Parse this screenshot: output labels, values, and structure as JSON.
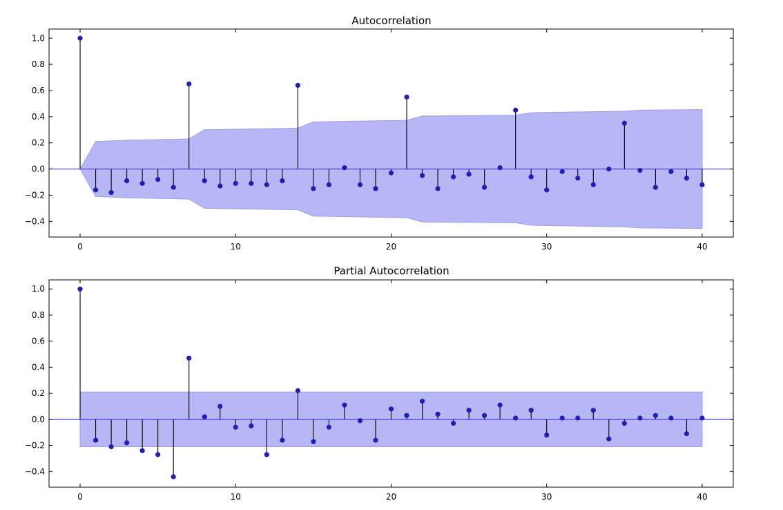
{
  "chart_data": [
    {
      "type": "stem",
      "title": "Autocorrelation",
      "xlabel": "",
      "ylabel": "",
      "xlim": [
        -2,
        42
      ],
      "ylim": [
        -0.52,
        1.07
      ],
      "xticks": [
        0,
        10,
        20,
        30,
        40
      ],
      "xtick_labels": [
        "0",
        "10",
        "20",
        "30",
        "40"
      ],
      "yticks": [
        -0.4,
        -0.2,
        0.0,
        0.2,
        0.4,
        0.6,
        0.8,
        1.0
      ],
      "ytick_labels": [
        "−0.4",
        "−0.2",
        "0.0",
        "0.2",
        "0.4",
        "0.6",
        "0.8",
        "1.0"
      ],
      "grid": false,
      "colors": {
        "marker": "#1f1fb0",
        "stem": "#000000",
        "zero_line": "#3b3bf0",
        "confint_fill": "#b7b7f5",
        "confint_edge": "#9b9be8"
      },
      "lags": [
        0,
        1,
        2,
        3,
        4,
        5,
        6,
        7,
        8,
        9,
        10,
        11,
        12,
        13,
        14,
        15,
        16,
        17,
        18,
        19,
        20,
        21,
        22,
        23,
        24,
        25,
        26,
        27,
        28,
        29,
        30,
        31,
        32,
        33,
        34,
        35,
        36,
        37,
        38,
        39,
        40
      ],
      "values": [
        1.0,
        -0.16,
        -0.18,
        -0.09,
        -0.11,
        -0.08,
        -0.14,
        0.65,
        -0.09,
        -0.13,
        -0.11,
        -0.11,
        -0.12,
        -0.09,
        0.64,
        -0.15,
        -0.12,
        0.01,
        -0.12,
        -0.15,
        -0.03,
        0.55,
        -0.05,
        -0.15,
        -0.06,
        -0.04,
        -0.14,
        0.01,
        0.45,
        -0.06,
        -0.16,
        -0.02,
        -0.07,
        -0.12,
        0.0,
        0.35,
        -0.01,
        -0.14,
        -0.02,
        -0.07,
        -0.12
      ],
      "confint": [
        0.0,
        0.21,
        0.215,
        0.22,
        0.222,
        0.225,
        0.227,
        0.23,
        0.3,
        0.302,
        0.304,
        0.306,
        0.308,
        0.31,
        0.312,
        0.36,
        0.362,
        0.364,
        0.366,
        0.368,
        0.37,
        0.372,
        0.405,
        0.406,
        0.407,
        0.408,
        0.409,
        0.41,
        0.411,
        0.43,
        0.432,
        0.434,
        0.436,
        0.438,
        0.44,
        0.442,
        0.45,
        0.451,
        0.452,
        0.453,
        0.454
      ]
    },
    {
      "type": "stem",
      "title": "Partial Autocorrelation",
      "xlabel": "",
      "ylabel": "",
      "xlim": [
        -2,
        42
      ],
      "ylim": [
        -0.52,
        1.07
      ],
      "xticks": [
        0,
        10,
        20,
        30,
        40
      ],
      "xtick_labels": [
        "0",
        "10",
        "20",
        "30",
        "40"
      ],
      "yticks": [
        -0.4,
        -0.2,
        0.0,
        0.2,
        0.4,
        0.6,
        0.8,
        1.0
      ],
      "ytick_labels": [
        "−0.4",
        "−0.2",
        "0.0",
        "0.2",
        "0.4",
        "0.6",
        "0.8",
        "1.0"
      ],
      "grid": false,
      "colors": {
        "marker": "#1f1fb0",
        "stem": "#000000",
        "zero_line": "#3b3bf0",
        "confint_fill": "#b7b7f5",
        "confint_edge": "#9b9be8"
      },
      "lags": [
        0,
        1,
        2,
        3,
        4,
        5,
        6,
        7,
        8,
        9,
        10,
        11,
        12,
        13,
        14,
        15,
        16,
        17,
        18,
        19,
        20,
        21,
        22,
        23,
        24,
        25,
        26,
        27,
        28,
        29,
        30,
        31,
        32,
        33,
        34,
        35,
        36,
        37,
        38,
        39,
        40
      ],
      "values": [
        1.0,
        -0.16,
        -0.21,
        -0.18,
        -0.24,
        -0.27,
        -0.44,
        0.47,
        0.02,
        0.1,
        -0.06,
        -0.05,
        -0.27,
        -0.16,
        0.22,
        -0.17,
        -0.06,
        0.11,
        -0.01,
        -0.16,
        0.08,
        0.03,
        0.14,
        0.04,
        -0.03,
        0.07,
        0.03,
        0.11,
        0.01,
        0.07,
        -0.12,
        0.01,
        0.01,
        0.07,
        -0.15,
        -0.03,
        0.01,
        0.03,
        0.01,
        -0.11,
        0.01
      ],
      "confint": [
        0.21,
        0.21,
        0.21,
        0.21,
        0.21,
        0.21,
        0.21,
        0.21,
        0.21,
        0.21,
        0.21,
        0.21,
        0.21,
        0.21,
        0.21,
        0.21,
        0.21,
        0.21,
        0.21,
        0.21,
        0.21,
        0.21,
        0.21,
        0.21,
        0.21,
        0.21,
        0.21,
        0.21,
        0.21,
        0.21,
        0.21,
        0.21,
        0.21,
        0.21,
        0.21,
        0.21,
        0.21,
        0.21,
        0.21,
        0.21,
        0.21
      ]
    }
  ]
}
